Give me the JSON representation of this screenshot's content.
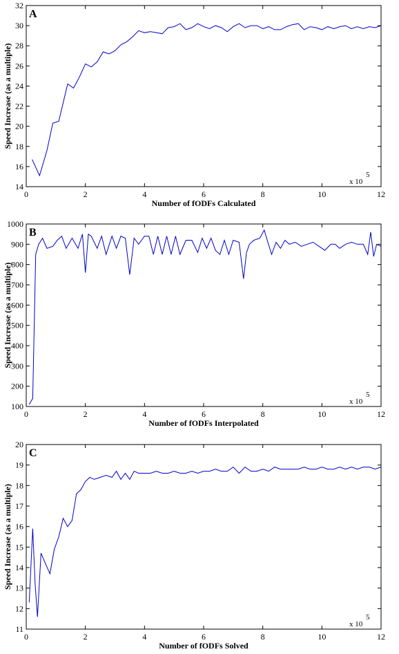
{
  "colors": {
    "series": "#0000cc",
    "axis": "#000000",
    "background": "#ffffff"
  },
  "chart_data": [
    {
      "type": "line",
      "panel_label": "A",
      "xlabel": "Number of fODFs Calculated",
      "ylabel": "Speed Increase (as a multiple)",
      "x_multiplier": {
        "base": "x 10",
        "exponent": "5"
      },
      "xlim": [
        0,
        12
      ],
      "ylim": [
        14,
        32
      ],
      "xticks": [
        0,
        2,
        4,
        6,
        8,
        10,
        12
      ],
      "yticks": [
        14,
        16,
        18,
        20,
        22,
        24,
        26,
        28,
        30,
        32
      ],
      "grid": false,
      "series": [
        {
          "x": [
            0.2,
            0.45,
            0.7,
            0.9,
            1.1,
            1.4,
            1.6,
            1.8,
            2.0,
            2.2,
            2.4,
            2.6,
            2.8,
            3.0,
            3.2,
            3.4,
            3.6,
            3.8,
            4.0,
            4.2,
            4.4,
            4.6,
            4.8,
            5.0,
            5.2,
            5.4,
            5.6,
            5.8,
            6.0,
            6.2,
            6.4,
            6.6,
            6.8,
            7.0,
            7.2,
            7.4,
            7.6,
            7.8,
            8.0,
            8.2,
            8.4,
            8.6,
            8.8,
            9.0,
            9.2,
            9.4,
            9.6,
            9.8,
            10.0,
            10.2,
            10.4,
            10.6,
            10.8,
            11.0,
            11.2,
            11.4,
            11.6,
            11.8,
            12.0
          ],
          "y": [
            16.7,
            15.1,
            17.6,
            20.3,
            20.5,
            24.2,
            23.8,
            24.9,
            26.2,
            25.9,
            26.4,
            27.4,
            27.2,
            27.5,
            28.1,
            28.4,
            28.9,
            29.5,
            29.3,
            29.4,
            29.3,
            29.2,
            29.8,
            29.9,
            30.2,
            29.6,
            29.8,
            30.2,
            29.9,
            29.7,
            30.0,
            29.8,
            29.4,
            29.9,
            30.2,
            29.8,
            30.0,
            30.0,
            29.7,
            29.9,
            29.6,
            29.6,
            29.9,
            30.1,
            30.2,
            29.6,
            29.9,
            29.8,
            29.6,
            29.9,
            29.7,
            29.9,
            30.0,
            29.7,
            29.9,
            29.7,
            29.9,
            29.8,
            30.0
          ]
        }
      ]
    },
    {
      "type": "line",
      "panel_label": "B",
      "xlabel": "Number of fODFs Interpolated",
      "ylabel": "Speed Increase (as a multiple)",
      "x_multiplier": {
        "base": "x 10",
        "exponent": "5"
      },
      "xlim": [
        0,
        12
      ],
      "ylim": [
        100,
        1000
      ],
      "xticks": [
        0,
        2,
        4,
        6,
        8,
        10,
        12
      ],
      "yticks": [
        100,
        200,
        300,
        400,
        500,
        600,
        700,
        800,
        900,
        1000
      ],
      "grid": false,
      "series": [
        {
          "x": [
            0.1,
            0.22,
            0.32,
            0.42,
            0.55,
            0.7,
            0.9,
            1.05,
            1.2,
            1.35,
            1.55,
            1.75,
            1.9,
            2.0,
            2.1,
            2.2,
            2.4,
            2.55,
            2.7,
            2.9,
            3.05,
            3.2,
            3.35,
            3.5,
            3.65,
            3.8,
            4.0,
            4.15,
            4.3,
            4.45,
            4.6,
            4.75,
            4.9,
            5.05,
            5.2,
            5.4,
            5.6,
            5.8,
            5.95,
            6.1,
            6.25,
            6.4,
            6.55,
            6.7,
            6.85,
            7.0,
            7.2,
            7.35,
            7.45,
            7.55,
            7.7,
            7.9,
            8.05,
            8.15,
            8.3,
            8.45,
            8.6,
            8.75,
            8.9,
            9.1,
            9.3,
            9.5,
            9.7,
            9.9,
            10.1,
            10.3,
            10.45,
            10.6,
            10.8,
            11.0,
            11.2,
            11.4,
            11.55,
            11.65,
            11.75,
            11.85,
            12.0
          ],
          "y": [
            110,
            140,
            850,
            900,
            930,
            880,
            890,
            920,
            940,
            880,
            930,
            880,
            950,
            760,
            950,
            940,
            880,
            940,
            850,
            940,
            880,
            940,
            930,
            750,
            930,
            900,
            940,
            940,
            850,
            940,
            850,
            940,
            850,
            940,
            850,
            920,
            920,
            860,
            930,
            880,
            930,
            870,
            850,
            920,
            850,
            920,
            910,
            730,
            860,
            900,
            920,
            930,
            970,
            920,
            850,
            910,
            880,
            920,
            900,
            910,
            890,
            900,
            910,
            890,
            870,
            900,
            900,
            880,
            900,
            910,
            900,
            900,
            850,
            960,
            840,
            900,
            890
          ]
        }
      ]
    },
    {
      "type": "line",
      "panel_label": "C",
      "xlabel": "Number of fODFs Solved",
      "ylabel": "Speed Increase (as a multiple)",
      "x_multiplier": {
        "base": "x 10",
        "exponent": "5"
      },
      "xlim": [
        0,
        12
      ],
      "ylim": [
        11,
        20
      ],
      "xticks": [
        0,
        2,
        4,
        6,
        8,
        10,
        12
      ],
      "yticks": [
        11,
        12,
        13,
        14,
        15,
        16,
        17,
        18,
        19,
        20
      ],
      "grid": false,
      "series": [
        {
          "x": [
            0.1,
            0.22,
            0.3,
            0.38,
            0.5,
            0.65,
            0.8,
            0.95,
            1.1,
            1.25,
            1.4,
            1.55,
            1.7,
            1.85,
            2.0,
            2.15,
            2.3,
            2.5,
            2.7,
            2.9,
            3.05,
            3.2,
            3.35,
            3.5,
            3.65,
            3.8,
            4.0,
            4.2,
            4.4,
            4.6,
            4.8,
            5.0,
            5.2,
            5.4,
            5.6,
            5.8,
            6.0,
            6.2,
            6.4,
            6.6,
            6.8,
            7.0,
            7.2,
            7.4,
            7.6,
            7.8,
            8.0,
            8.2,
            8.4,
            8.6,
            8.8,
            9.0,
            9.2,
            9.4,
            9.6,
            9.8,
            10.0,
            10.2,
            10.4,
            10.6,
            10.8,
            11.0,
            11.2,
            11.4,
            11.6,
            11.8,
            12.0
          ],
          "y": [
            12.3,
            15.9,
            13.2,
            11.6,
            14.7,
            14.2,
            13.7,
            14.9,
            15.5,
            16.4,
            16.0,
            16.3,
            17.6,
            17.8,
            18.2,
            18.4,
            18.3,
            18.4,
            18.5,
            18.4,
            18.7,
            18.3,
            18.6,
            18.3,
            18.7,
            18.6,
            18.6,
            18.6,
            18.7,
            18.6,
            18.6,
            18.7,
            18.6,
            18.6,
            18.7,
            18.6,
            18.7,
            18.7,
            18.8,
            18.7,
            18.7,
            18.9,
            18.6,
            18.9,
            18.7,
            18.7,
            18.8,
            18.7,
            18.9,
            18.8,
            18.8,
            18.8,
            18.8,
            18.9,
            18.8,
            18.8,
            18.9,
            18.8,
            18.8,
            18.9,
            18.8,
            18.9,
            18.8,
            18.9,
            18.9,
            18.8,
            18.9
          ]
        }
      ]
    }
  ]
}
